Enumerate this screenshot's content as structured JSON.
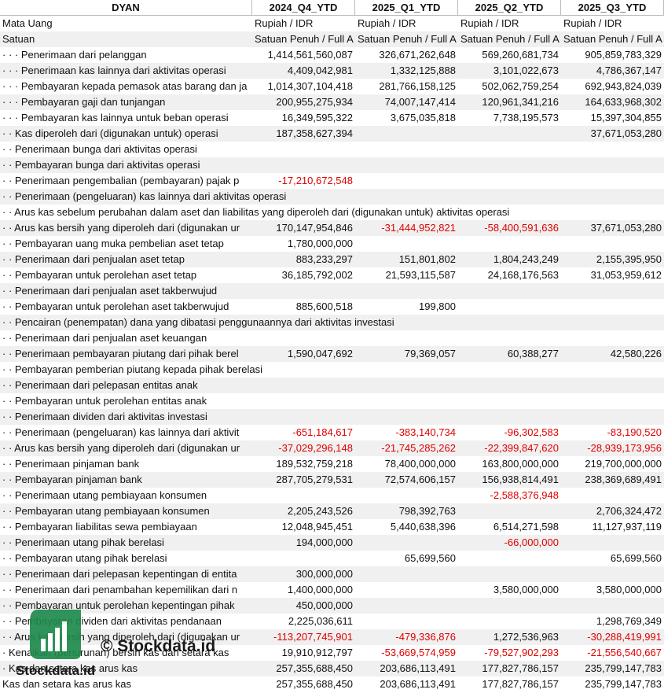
{
  "header": {
    "title": "DYAN",
    "columns": [
      "2024_Q4_YTD",
      "2025_Q1_YTD",
      "2025_Q2_YTD",
      "2025_Q3_YTD"
    ]
  },
  "meta_rows": [
    {
      "label": "Mata Uang",
      "values": [
        "Rupiah / IDR",
        "Rupiah / IDR",
        "Rupiah / IDR",
        "Rupiah / IDR"
      ]
    },
    {
      "label": "Satuan",
      "values": [
        "Satuan Penuh / Full A",
        "Satuan Penuh / Full A",
        "Satuan Penuh / Full A",
        "Satuan Penuh / Full A"
      ]
    }
  ],
  "rows": [
    {
      "label": "· · · Penerimaan dari pelanggan",
      "values": [
        "1,414,561,560,087",
        "326,671,262,648",
        "569,260,681,734",
        "905,859,783,329"
      ]
    },
    {
      "label": "· · · Penerimaan kas lainnya dari aktivitas operasi",
      "values": [
        "4,409,042,981",
        "1,332,125,888",
        "3,101,022,673",
        "4,786,367,147"
      ]
    },
    {
      "label": "· · · Pembayaran kepada pemasok atas barang dan ja",
      "values": [
        "1,014,307,104,418",
        "281,766,158,125",
        "502,062,759,254",
        "692,943,824,039"
      ]
    },
    {
      "label": "· · · Pembayaran gaji dan tunjangan",
      "values": [
        "200,955,275,934",
        "74,007,147,414",
        "120,961,341,216",
        "164,633,968,302"
      ]
    },
    {
      "label": "· · · Pembayaran kas lainnya untuk beban operasi",
      "values": [
        "16,349,595,322",
        "3,675,035,818",
        "7,738,195,573",
        "15,397,304,855"
      ]
    },
    {
      "label": "· · Kas diperoleh dari (digunakan untuk) operasi",
      "values": [
        "187,358,627,394",
        null,
        null,
        "37,671,053,280"
      ]
    },
    {
      "label": "· · Penerimaan bunga dari aktivitas operasi",
      "values": [
        null,
        null,
        null,
        null
      ]
    },
    {
      "label": "· · Pembayaran bunga dari aktivitas operasi",
      "values": [
        null,
        null,
        null,
        null
      ]
    },
    {
      "label": "· · Penerimaan pengembalian (pembayaran) pajak p",
      "values": [
        "-17,210,672,548",
        null,
        null,
        null
      ]
    },
    {
      "label": "· · Penerimaan (pengeluaran) kas lainnya dari aktivitas operasi",
      "values": [
        null,
        null,
        null,
        null
      ]
    },
    {
      "label": "· · Arus kas sebelum perubahan dalam aset dan liabilitas yang diperoleh dari (digunakan untuk) aktivitas operasi",
      "values": [
        null,
        null,
        null,
        null
      ]
    },
    {
      "label": "· · Arus kas bersih yang diperoleh dari (digunakan ur",
      "values": [
        "170,147,954,846",
        "-31,444,952,821",
        "-58,400,591,636",
        "37,671,053,280"
      ]
    },
    {
      "label": "· · Pembayaran uang muka pembelian aset tetap",
      "values": [
        "1,780,000,000",
        null,
        null,
        null
      ]
    },
    {
      "label": "· · Penerimaan dari penjualan aset tetap",
      "values": [
        "883,233,297",
        "151,801,802",
        "1,804,243,249",
        "2,155,395,950"
      ]
    },
    {
      "label": "· · Pembayaran untuk perolehan aset tetap",
      "values": [
        "36,185,792,002",
        "21,593,115,587",
        "24,168,176,563",
        "31,053,959,612"
      ]
    },
    {
      "label": "· · Penerimaan dari penjualan aset takberwujud",
      "values": [
        null,
        null,
        null,
        null
      ]
    },
    {
      "label": "· · Pembayaran untuk perolehan aset takberwujud",
      "values": [
        "885,600,518",
        "199,800",
        null,
        null
      ]
    },
    {
      "label": "· · Pencairan (penempatan) dana yang dibatasi penggunaannya dari aktivitas investasi",
      "values": [
        null,
        null,
        null,
        null
      ]
    },
    {
      "label": "· · Penerimaan dari penjualan aset keuangan",
      "values": [
        null,
        null,
        null,
        null
      ]
    },
    {
      "label": "· · Penerimaan pembayaran piutang dari pihak berel",
      "values": [
        "1,590,047,692",
        "79,369,057",
        "60,388,277",
        "42,580,226"
      ]
    },
    {
      "label": "· · Pembayaran pemberian piutang kepada pihak berelasi",
      "values": [
        null,
        null,
        null,
        null
      ]
    },
    {
      "label": "· · Penerimaan dari pelepasan entitas anak",
      "values": [
        null,
        null,
        null,
        null
      ]
    },
    {
      "label": "· · Pembayaran untuk perolehan entitas anak",
      "values": [
        null,
        null,
        null,
        null
      ]
    },
    {
      "label": "· · Penerimaan dividen dari aktivitas investasi",
      "values": [
        null,
        null,
        null,
        null
      ]
    },
    {
      "label": "· · Penerimaan (pengeluaran) kas lainnya dari aktivit",
      "values": [
        "-651,184,617",
        "-383,140,734",
        "-96,302,583",
        "-83,190,520"
      ]
    },
    {
      "label": "· · Arus kas bersih yang diperoleh dari (digunakan ur",
      "values": [
        "-37,029,296,148",
        "-21,745,285,262",
        "-22,399,847,620",
        "-28,939,173,956"
      ]
    },
    {
      "label": "· · Penerimaan pinjaman bank",
      "values": [
        "189,532,759,218",
        "78,400,000,000",
        "163,800,000,000",
        "219,700,000,000"
      ]
    },
    {
      "label": "· · Pembayaran pinjaman bank",
      "values": [
        "287,705,279,531",
        "72,574,606,157",
        "156,938,814,491",
        "238,369,689,491"
      ]
    },
    {
      "label": "· · Penerimaan utang pembiayaan konsumen",
      "values": [
        null,
        null,
        "-2,588,376,948",
        null
      ]
    },
    {
      "label": "· · Pembayaran utang pembiayaan konsumen",
      "values": [
        "2,205,243,526",
        "798,392,763",
        null,
        "2,706,324,472"
      ]
    },
    {
      "label": "· · Pembayaran liabilitas sewa pembiayaan",
      "values": [
        "12,048,945,451",
        "5,440,638,396",
        "6,514,271,598",
        "11,127,937,119"
      ]
    },
    {
      "label": "· · Penerimaan utang pihak berelasi",
      "values": [
        "194,000,000",
        null,
        "-66,000,000",
        null
      ]
    },
    {
      "label": "· · Pembayaran utang pihak berelasi",
      "values": [
        null,
        "65,699,560",
        null,
        "65,699,560"
      ]
    },
    {
      "label": "· · Penerimaan dari pelepasan kepentingan di entita",
      "values": [
        "300,000,000",
        null,
        null,
        null
      ]
    },
    {
      "label": "· · Penerimaan dari penambahan kepemilikan dari n",
      "values": [
        "1,400,000,000",
        null,
        "3,580,000,000",
        "3,580,000,000"
      ]
    },
    {
      "label": "· · Pembayaran untuk perolehan kepentingan pihak",
      "values": [
        "450,000,000",
        null,
        null,
        null
      ]
    },
    {
      "label": "· · Pembayaran dividen dari aktivitas pendanaan",
      "values": [
        "2,225,036,611",
        null,
        null,
        "1,298,769,349"
      ]
    },
    {
      "label": "· · Arus kas bersih yang diperoleh dari (digunakan ur",
      "values": [
        "-113,207,745,901",
        "-479,336,876",
        "1,272,536,963",
        "-30,288,419,991"
      ]
    },
    {
      "label": "· Kenaikan (penurunan) bersih kas dan setara kas",
      "values": [
        "19,910,912,797",
        "-53,669,574,959",
        "-79,527,902,293",
        "-21,556,540,667"
      ]
    },
    {
      "label": "· Kas dan setara kas arus kas",
      "values": [
        "257,355,688,450",
        "203,686,113,491",
        "177,827,786,157",
        "235,799,147,783"
      ]
    },
    {
      "label": "Kas dan setara kas arus kas",
      "values": [
        "257,355,688,450",
        "203,686,113,491",
        "177,827,786,157",
        "235,799,147,783"
      ]
    }
  ],
  "watermark": {
    "text": "© Stockdata.id",
    "logo_text": "Stockdata.id"
  }
}
